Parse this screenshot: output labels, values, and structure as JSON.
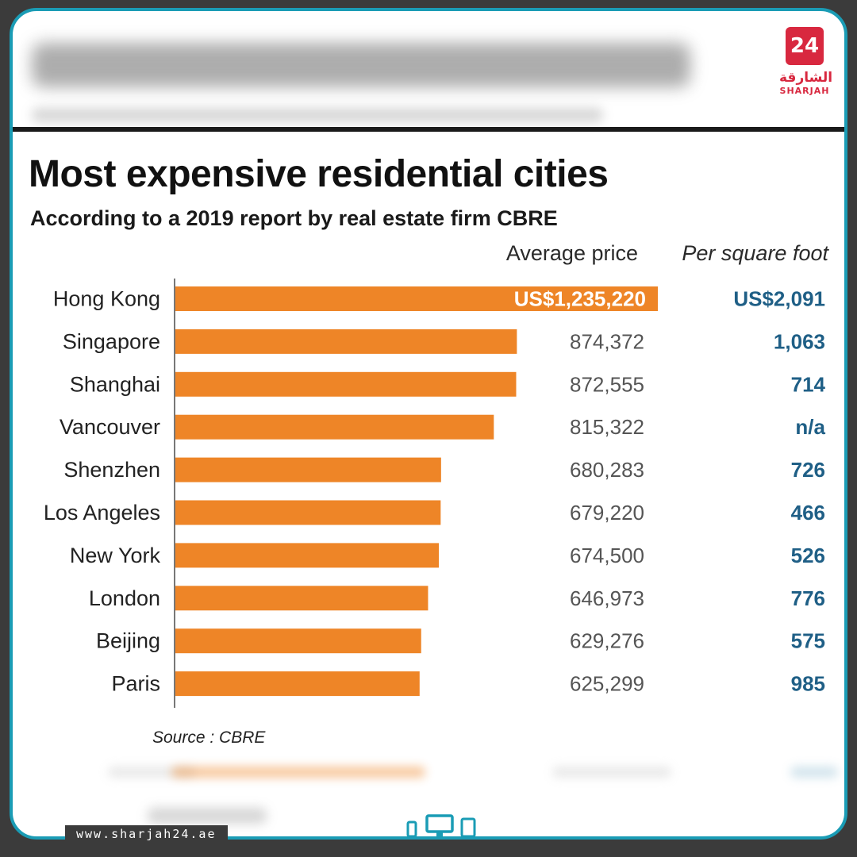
{
  "brand": {
    "badge": "24",
    "name_ar": "الشارقة",
    "name_en": "SHARJAH",
    "website": "www.sharjah24.ae",
    "accent": "#d8283f",
    "frame_color": "#1a9cb5"
  },
  "chart_data": {
    "type": "bar",
    "orientation": "horizontal",
    "title": "Most expensive residential cities",
    "subtitle": "According to a 2019 report by real estate firm CBRE",
    "columns": {
      "average_price": "Average price",
      "per_square_foot": "Per square foot"
    },
    "categories": [
      "Hong Kong",
      "Singapore",
      "Shanghai",
      "Vancouver",
      "Shenzhen",
      "Los Angeles",
      "New York",
      "London",
      "Beijing",
      "Paris"
    ],
    "values": [
      1235220,
      874372,
      872555,
      815322,
      680283,
      679220,
      674500,
      646973,
      629276,
      625299
    ],
    "value_labels": [
      "US$1,235,220",
      "874,372",
      "872,555",
      "815,322",
      "680,283",
      "679,220",
      "674,500",
      "646,973",
      "629,276",
      "625,299"
    ],
    "per_square_foot": [
      "US$2,091",
      "1,063",
      "714",
      "n/a",
      "726",
      "466",
      "526",
      "776",
      "575",
      "985"
    ],
    "bar_color": "#ee8527",
    "value_color": "#555555",
    "psf_color": "#1f5f86",
    "grid": false,
    "source": "Source : CBRE"
  }
}
